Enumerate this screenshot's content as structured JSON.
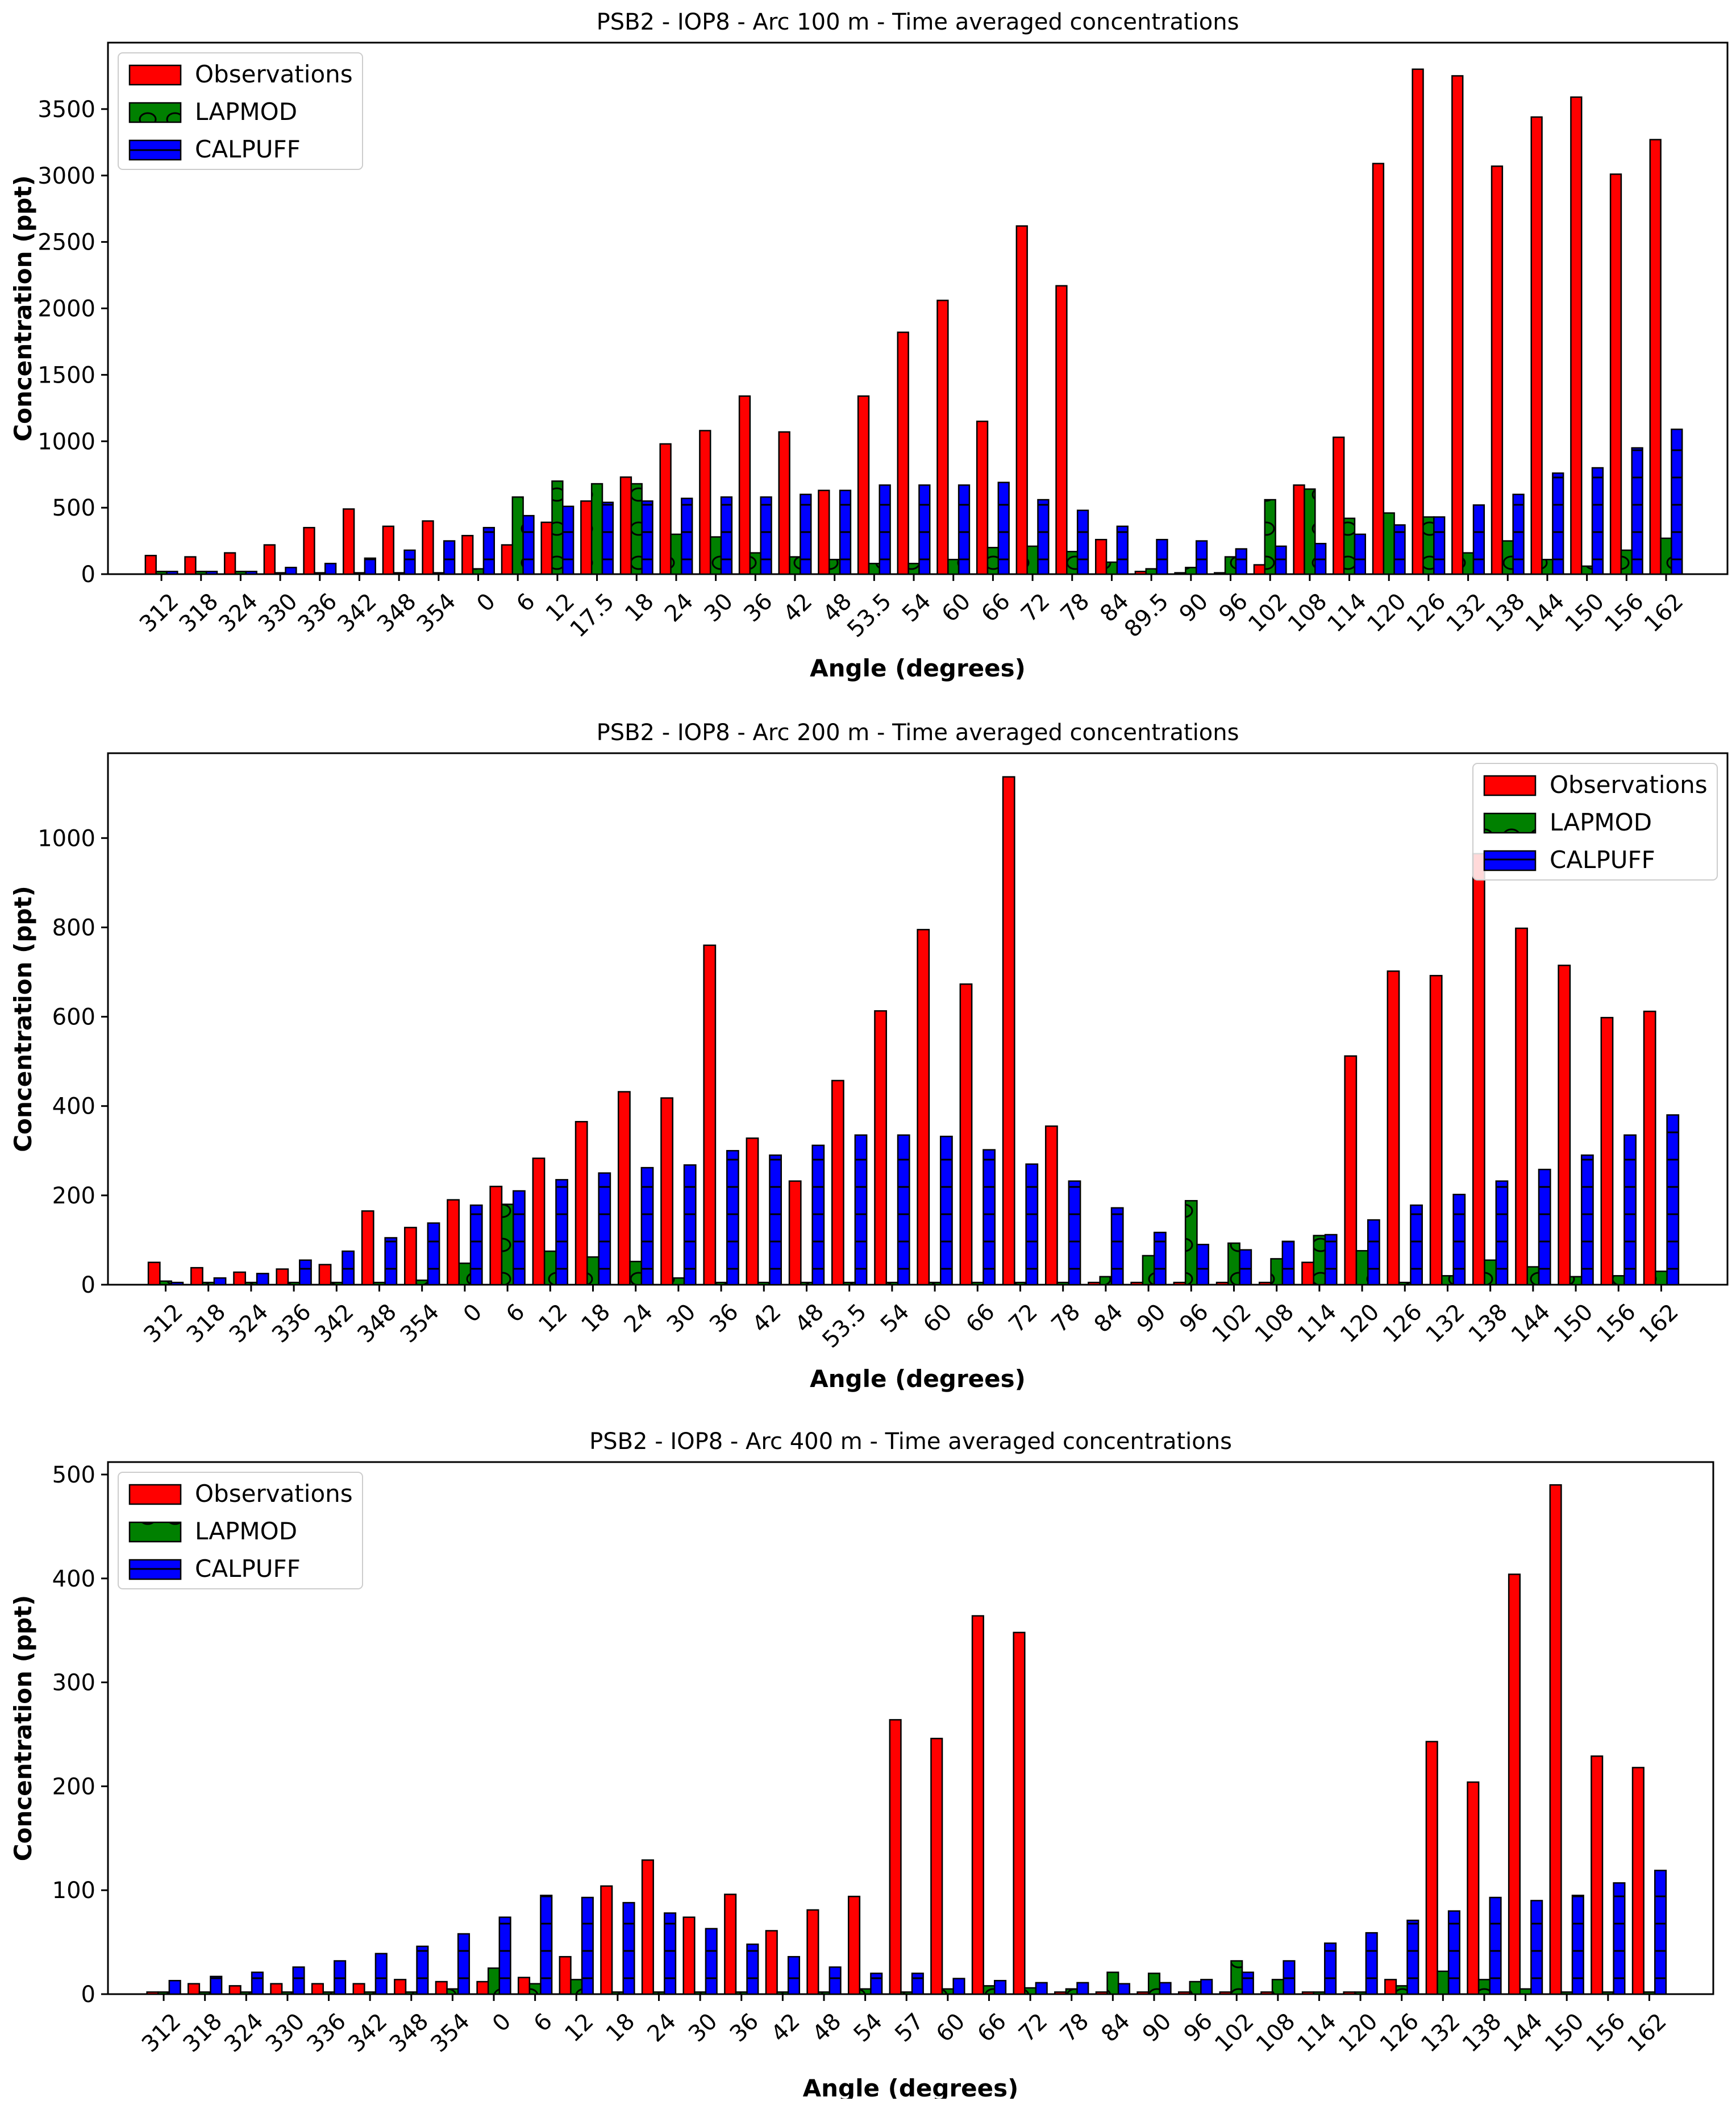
{
  "colors": {
    "observations": "#ff0000",
    "lapmod": "#008000",
    "calpuff": "#0000ff",
    "edge": "#000000",
    "background": "#ffffff"
  },
  "chart_data": [
    {
      "type": "bar",
      "title": "PSB2 - IOP8 - Arc 100 m - Time averaged concentrations",
      "xlabel": "Angle (degrees)",
      "ylabel": "Concentration (ppt)",
      "ylim": [
        0,
        4000
      ],
      "yticks": [
        0,
        500,
        1000,
        1500,
        2000,
        2500,
        3000,
        3500
      ],
      "legend_position": "upper-left",
      "grid": false,
      "categories": [
        "312",
        "318",
        "324",
        "330",
        "336",
        "342",
        "348",
        "354",
        "0",
        "6",
        "12",
        "17.5",
        "18",
        "24",
        "30",
        "36",
        "42",
        "48",
        "53.5",
        "54",
        "60",
        "66",
        "72",
        "78",
        "84",
        "89.5",
        "90",
        "96",
        "102",
        "108",
        "114",
        "120",
        "126",
        "132",
        "138",
        "144",
        "150",
        "156",
        "162"
      ],
      "series": [
        {
          "name": "Observations",
          "values": [
            140,
            130,
            160,
            220,
            350,
            490,
            360,
            400,
            290,
            220,
            390,
            550,
            730,
            980,
            1080,
            1340,
            1070,
            630,
            1340,
            1820,
            2060,
            1150,
            2620,
            2170,
            260,
            20,
            10,
            10,
            70,
            670,
            1030,
            3090,
            3800,
            3750,
            3070,
            3440,
            3590,
            3010,
            3270
          ]
        },
        {
          "name": "LAPMOD",
          "values": [
            20,
            20,
            20,
            10,
            10,
            10,
            10,
            10,
            40,
            580,
            700,
            680,
            680,
            300,
            280,
            160,
            130,
            110,
            80,
            80,
            110,
            200,
            210,
            170,
            90,
            40,
            50,
            130,
            560,
            640,
            420,
            460,
            430,
            160,
            250,
            110,
            60,
            180,
            270
          ]
        },
        {
          "name": "CALPUFF",
          "values": [
            20,
            20,
            20,
            50,
            80,
            120,
            180,
            250,
            350,
            440,
            510,
            540,
            550,
            570,
            580,
            580,
            600,
            630,
            670,
            670,
            670,
            690,
            560,
            480,
            360,
            260,
            250,
            190,
            210,
            230,
            300,
            370,
            430,
            520,
            600,
            760,
            800,
            950,
            1090
          ]
        }
      ]
    },
    {
      "type": "bar",
      "title": "PSB2 - IOP8 - Arc 200 m - Time averaged concentrations",
      "xlabel": "Angle (degrees)",
      "ylabel": "Concentration (ppt)",
      "ylim": [
        0,
        1190
      ],
      "yticks": [
        0,
        200,
        400,
        600,
        800,
        1000
      ],
      "legend_position": "upper-right",
      "grid": false,
      "categories": [
        "312",
        "318",
        "324",
        "336",
        "342",
        "348",
        "354",
        "0",
        "6",
        "12",
        "18",
        "24",
        "30",
        "36",
        "42",
        "48",
        "53.5",
        "54",
        "60",
        "66",
        "72",
        "78",
        "84",
        "90",
        "96",
        "102",
        "108",
        "114",
        "120",
        "126",
        "132",
        "138",
        "144",
        "150",
        "156",
        "162"
      ],
      "series": [
        {
          "name": "Observations",
          "values": [
            50,
            38,
            28,
            35,
            45,
            165,
            128,
            190,
            220,
            283,
            365,
            432,
            418,
            760,
            328,
            232,
            457,
            613,
            795,
            673,
            1137,
            355,
            5,
            5,
            5,
            5,
            5,
            50,
            512,
            702,
            692,
            965,
            798,
            715,
            598,
            612
          ]
        },
        {
          "name": "LAPMOD",
          "values": [
            8,
            5,
            5,
            5,
            5,
            5,
            10,
            48,
            180,
            75,
            62,
            52,
            15,
            5,
            5,
            5,
            5,
            5,
            5,
            5,
            5,
            5,
            18,
            65,
            188,
            93,
            58,
            110,
            76,
            5,
            20,
            55,
            40,
            18,
            20,
            30
          ]
        },
        {
          "name": "CALPUFF",
          "values": [
            5,
            15,
            25,
            55,
            75,
            105,
            138,
            178,
            210,
            235,
            250,
            262,
            268,
            300,
            290,
            312,
            335,
            335,
            332,
            302,
            270,
            232,
            172,
            117,
            90,
            78,
            97,
            112,
            145,
            178,
            202,
            232,
            258,
            290,
            335,
            380
          ]
        }
      ]
    },
    {
      "type": "bar",
      "title": "PSB2 - IOP8 - Arc 400 m - Time averaged concentrations",
      "xlabel": "Angle (degrees)",
      "ylabel": "Concentration (ppt)",
      "ylim": [
        0,
        512
      ],
      "yticks": [
        0,
        100,
        200,
        300,
        400,
        500
      ],
      "legend_position": "upper-left",
      "grid": false,
      "categories": [
        "312",
        "318",
        "324",
        "330",
        "336",
        "342",
        "348",
        "354",
        "0",
        "6",
        "12",
        "18",
        "24",
        "30",
        "36",
        "42",
        "48",
        "54",
        "57",
        "60",
        "66",
        "72",
        "78",
        "84",
        "90",
        "96",
        "102",
        "108",
        "114",
        "120",
        "126",
        "132",
        "138",
        "144",
        "150",
        "156",
        "162"
      ],
      "series": [
        {
          "name": "Observations",
          "values": [
            2,
            10,
            8,
            10,
            10,
            10,
            14,
            12,
            12,
            16,
            36,
            104,
            129,
            74,
            96,
            61,
            81,
            94,
            264,
            246,
            364,
            348,
            2,
            2,
            2,
            2,
            2,
            2,
            2,
            2,
            14,
            243,
            204,
            404,
            490,
            229,
            218
          ]
        },
        {
          "name": "LAPMOD",
          "values": [
            2,
            2,
            2,
            2,
            2,
            2,
            2,
            5,
            25,
            10,
            14,
            2,
            2,
            2,
            2,
            2,
            2,
            5,
            2,
            5,
            8,
            6,
            5,
            21,
            20,
            12,
            32,
            14,
            2,
            2,
            8,
            22,
            14,
            5,
            2,
            2,
            2
          ]
        },
        {
          "name": "CALPUFF",
          "values": [
            13,
            17,
            21,
            26,
            32,
            39,
            46,
            58,
            74,
            95,
            93,
            88,
            78,
            63,
            48,
            36,
            26,
            20,
            20,
            15,
            13,
            11,
            11,
            10,
            11,
            14,
            21,
            32,
            49,
            59,
            71,
            80,
            93,
            90,
            95,
            107,
            119
          ]
        }
      ]
    }
  ]
}
